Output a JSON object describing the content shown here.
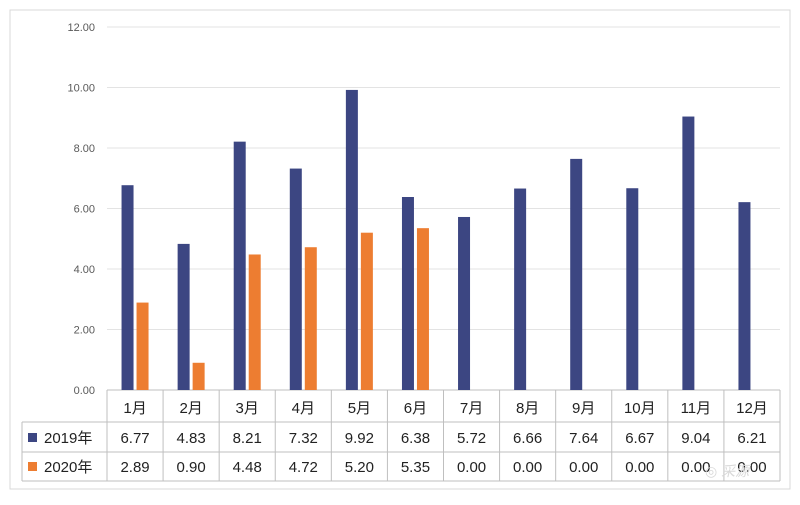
{
  "chart_data": {
    "type": "bar",
    "categories": [
      "1月",
      "2月",
      "3月",
      "4月",
      "5月",
      "6月",
      "7月",
      "8月",
      "9月",
      "10月",
      "11月",
      "12月"
    ],
    "series": [
      {
        "name": "2019年",
        "color": "#3c4682",
        "values": [
          6.77,
          4.83,
          8.21,
          7.32,
          9.92,
          6.38,
          5.72,
          6.66,
          7.64,
          6.67,
          9.04,
          6.21
        ],
        "display_values": [
          "6.77",
          "4.83",
          "8.21",
          "7.32",
          "9.92",
          "6.38",
          "5.72",
          "6.66",
          "7.64",
          "6.67",
          "9.04",
          "6.21"
        ]
      },
      {
        "name": "2020年",
        "color": "#ed7d31",
        "values": [
          2.89,
          0.9,
          4.48,
          4.72,
          5.2,
          5.35,
          0.0,
          0.0,
          0.0,
          0.0,
          0.0,
          0.0
        ],
        "display_values": [
          "2.89",
          "0.90",
          "4.48",
          "4.72",
          "5.20",
          "5.35",
          "0.00",
          "0.00",
          "0.00",
          "0.00",
          "0.00",
          "0.00"
        ]
      }
    ],
    "ylim": [
      0,
      12
    ],
    "yticks": [
      "0.00",
      "2.00",
      "4.00",
      "6.00",
      "8.00",
      "10.00",
      "12.00"
    ],
    "title": "",
    "xlabel": "",
    "ylabel": "",
    "grid": true,
    "legend": "data-table-left"
  }
}
